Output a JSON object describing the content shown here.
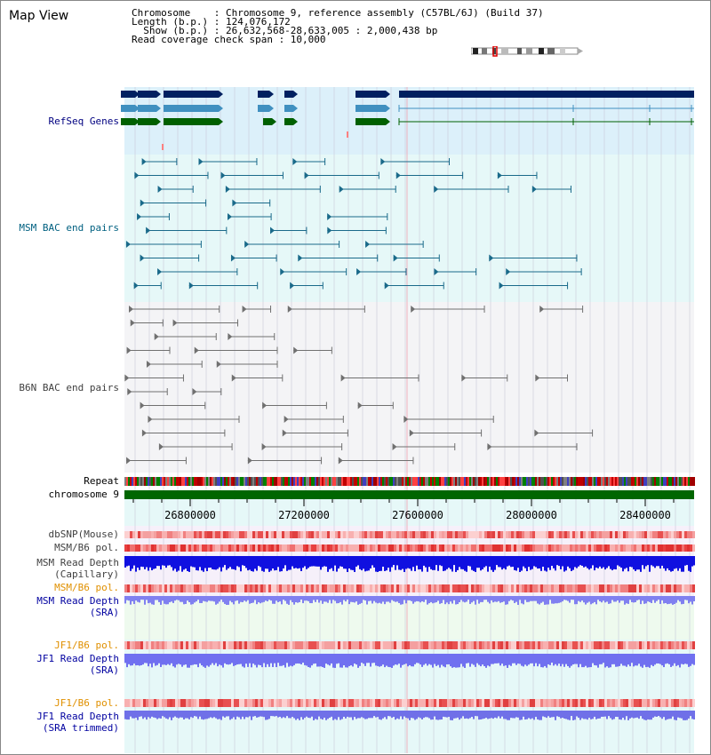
{
  "view": {
    "title": "Map View",
    "chromosome_line": "Chromosome    : Chromosome 9, reference assembly (C57BL/6J) (Build 37)",
    "length_line": "Length (b.p.) : 124,076,172",
    "show_line": "  Show (b.p.) : 26,632,568-28,633,005 : 2,000,438 bp",
    "span_line": "Read coverage check span : 10,000"
  },
  "tracks": {
    "refseq": "RefSeq Genes",
    "msm_bac": "MSM BAC end pairs",
    "b6n_bac": "B6N BAC end pairs",
    "repeat": "Repeat",
    "chromosome": "chromosome 9",
    "dbsnp": "dbSNP(Mouse)",
    "msm_b6_pol_1": "MSM/B6 pol.",
    "msm_depth_cap_1": "MSM Read Depth",
    "msm_depth_cap_2": "(Capillary)",
    "msm_b6_pol_2": "MSM/B6 pol.",
    "msm_depth_sra_1": "MSM Read Depth",
    "msm_depth_sra_2": "(SRA)",
    "jf1_b6_pol_1": "JF1/B6 pol.",
    "jf1_depth_sra_1": "JF1 Read Depth",
    "jf1_depth_sra_2": "(SRA)",
    "jf1_b6_pol_2": "JF1/B6 pol.",
    "jf1_depth_trim_1": "JF1 Read Depth",
    "jf1_depth_trim_2": "(SRA trimmed)"
  },
  "axis": {
    "ticks": [
      "26800000",
      "27200000",
      "27600000",
      "28000000",
      "28400000"
    ]
  },
  "colors": {
    "refseq_label": "#000080",
    "msm_label": "#006080",
    "b6n_label": "#404040",
    "orange_label": "#e09000",
    "blue_label": "#0000a0",
    "gene_dark": "#002060",
    "gene_mid": "#4090c0",
    "gene_green": "#006000",
    "chrom_green": "#006600"
  }
}
